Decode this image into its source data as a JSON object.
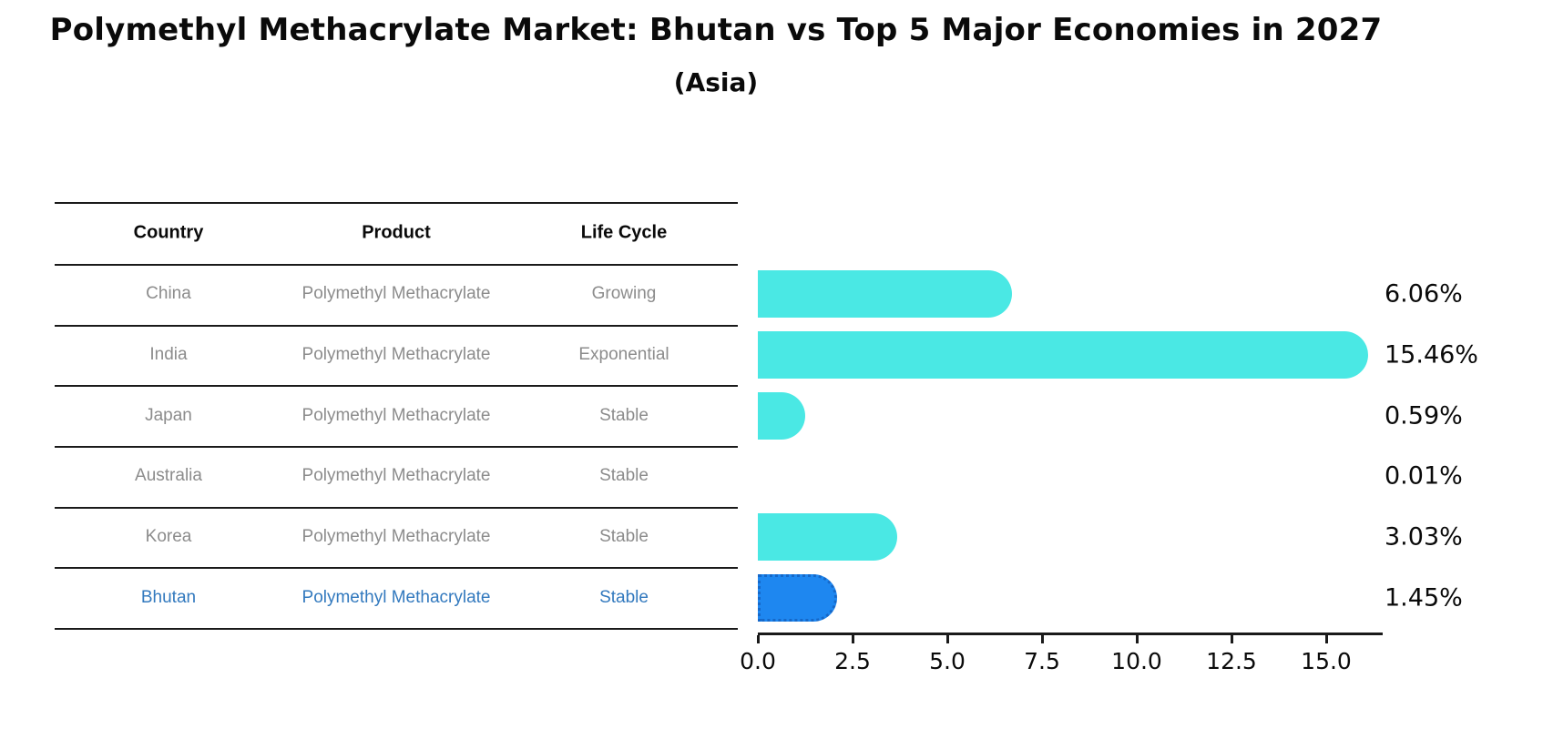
{
  "title": "Polymethyl Methacrylate Market: Bhutan vs Top 5 Major Economies in 2027",
  "subtitle": "(Asia)",
  "table": {
    "headers": [
      "Country",
      "Product",
      "Life Cycle"
    ],
    "rows": [
      {
        "country": "China",
        "product": "Polymethyl Methacrylate",
        "life_cycle": "Growing",
        "highlight": false
      },
      {
        "country": "India",
        "product": "Polymethyl Methacrylate",
        "life_cycle": "Exponential",
        "highlight": false
      },
      {
        "country": "Japan",
        "product": "Polymethyl Methacrylate",
        "life_cycle": "Stable",
        "highlight": false
      },
      {
        "country": "Australia",
        "product": "Polymethyl Methacrylate",
        "life_cycle": "Stable",
        "highlight": false
      },
      {
        "country": "Korea",
        "product": "Polymethyl Methacrylate",
        "life_cycle": "Stable",
        "highlight": false
      },
      {
        "country": "Bhutan",
        "product": "Polymethyl Methacrylate",
        "life_cycle": "Stable",
        "highlight": true
      }
    ]
  },
  "chart_data": {
    "type": "bar",
    "orientation": "horizontal",
    "title": "Polymethyl Methacrylate Market: Bhutan vs Top 5 Major Economies in 2027 (Asia)",
    "categories": [
      "China",
      "India",
      "Japan",
      "Australia",
      "Korea",
      "Bhutan"
    ],
    "values": [
      6.06,
      15.46,
      0.59,
      0.01,
      3.03,
      1.45
    ],
    "value_labels": [
      "6.06%",
      "15.46%",
      "0.59%",
      "0.01%",
      "3.03%",
      "1.45%"
    ],
    "x_ticks": [
      0.0,
      2.5,
      5.0,
      7.5,
      10.0,
      12.5,
      15.0
    ],
    "x_tick_labels": [
      "0.0",
      "2.5",
      "5.0",
      "7.5",
      "10.0",
      "12.5",
      "15.0"
    ],
    "xlim": [
      0,
      16.5
    ],
    "xlabel": "",
    "ylabel": "",
    "grid": false,
    "legend": "none",
    "highlight_index": 5
  },
  "colors": {
    "bar": "#4ae8e4",
    "highlight_bar": "#1e87f0",
    "highlight_bar_edge": "#1668c8",
    "highlight_text": "#3279be",
    "row_text": "#8c8c8c",
    "header_text": "#0a0a0a"
  }
}
